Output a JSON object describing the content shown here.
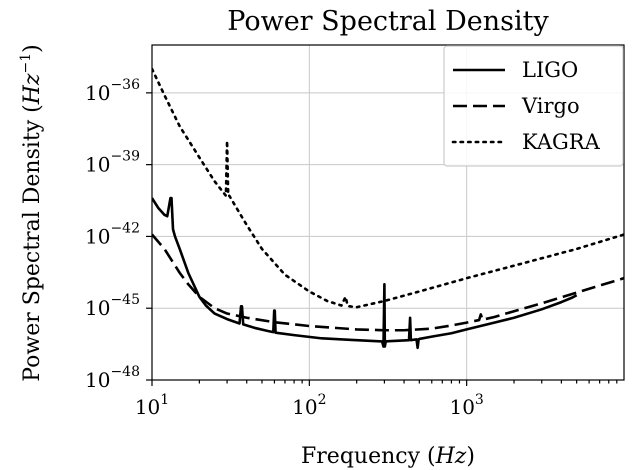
{
  "chart_data": {
    "type": "line",
    "title": "Power Spectral Density",
    "xlabel": "Frequency",
    "xlabel_unit": "Hz",
    "ylabel": "Power Spectral Density",
    "ylabel_unit": "Hz",
    "ylabel_unit_exp": "−1",
    "xscale": "log",
    "yscale": "log",
    "xlim": [
      10,
      10000
    ],
    "ylim": [
      1e-48,
      1e-34
    ],
    "grid": true,
    "legend_position": "top-right",
    "x_ticks": [
      {
        "value": 10,
        "base": "10",
        "exp": "1"
      },
      {
        "value": 100,
        "base": "10",
        "exp": "2"
      },
      {
        "value": 1000,
        "base": "10",
        "exp": "3"
      }
    ],
    "y_ticks": [
      {
        "value": 1e-48,
        "base": "10",
        "exp": "−48"
      },
      {
        "value": 1e-45,
        "base": "10",
        "exp": "−45"
      },
      {
        "value": 1e-42,
        "base": "10",
        "exp": "−42"
      },
      {
        "value": 1e-39,
        "base": "10",
        "exp": "−39"
      },
      {
        "value": 1e-36,
        "base": "10",
        "exp": "−36"
      }
    ],
    "series": [
      {
        "name": "LIGO",
        "style": "solid",
        "x": [
          10,
          11,
          12,
          12.5,
          13.1,
          13.3,
          13.6,
          14,
          15,
          17,
          20,
          22,
          25,
          30,
          36,
          36.8,
          37.3,
          38,
          45,
          55,
          59,
          59.8,
          60.3,
          61,
          80,
          120,
          180,
          250,
          290,
          296,
          300,
          302,
          306,
          320,
          400,
          430,
          437,
          442,
          448,
          470,
          480,
          488,
          495,
          500,
          600,
          800,
          1000,
          1500,
          2000,
          3000,
          4000,
          4700,
          5000
        ],
        "y": [
          4e-41,
          1.5e-41,
          8e-42,
          7e-42,
          4e-41,
          4e-41,
          2e-42,
          1e-42,
          3e-43,
          3e-44,
          3e-45,
          1.3e-45,
          6e-46,
          3.5e-46,
          2.3e-46,
          1.2e-45,
          1.2e-45,
          2.1e-46,
          1.5e-46,
          1.1e-46,
          1e-46,
          8e-46,
          8e-46,
          9.5e-47,
          7.5e-47,
          5.5e-47,
          4.8e-47,
          4.3e-47,
          4.1e-47,
          2.5e-47,
          1e-44,
          2.5e-47,
          4.1e-47,
          4.2e-47,
          4.5e-47,
          4.6e-47,
          4e-46,
          4.6e-47,
          4.7e-47,
          4.9e-47,
          5e-47,
          2.2e-47,
          5e-47,
          5.2e-47,
          6.5e-47,
          9e-47,
          1.3e-46,
          2.5e-46,
          4e-46,
          9e-46,
          1.8e-45,
          2.8e-45,
          3.5e-45
        ]
      },
      {
        "name": "Virgo",
        "style": "dashed",
        "x": [
          10,
          12,
          15,
          17,
          20,
          25,
          30,
          40,
          60,
          100,
          200,
          300,
          400,
          600,
          800,
          1000,
          1200,
          1230,
          1260,
          1500,
          2000,
          3000,
          5000,
          10000
        ],
        "y": [
          1.2e-42,
          3e-43,
          3e-44,
          1e-44,
          3e-45,
          1e-45,
          6e-46,
          4e-46,
          2.6e-46,
          1.8e-46,
          1.3e-46,
          1.2e-46,
          1.2e-46,
          1.4e-46,
          1.9e-46,
          2.5e-46,
          3.2e-46,
          5.5e-46,
          3.3e-46,
          4.3e-46,
          7.5e-46,
          1.6e-45,
          4.5e-45,
          1.8e-44
        ]
      },
      {
        "name": "KAGRA",
        "style": "dotted",
        "x": [
          10,
          12,
          15,
          20,
          25,
          29.5,
          30,
          30.5,
          31,
          35,
          40,
          50,
          70,
          100,
          130,
          160,
          170,
          175,
          180,
          200,
          300,
          500,
          1000,
          2000,
          5000,
          10000
        ],
        "y": [
          1e-35,
          8e-37,
          4e-38,
          2e-39,
          2e-40,
          5e-41,
          1e-38,
          5e-41,
          5e-41,
          1.3e-41,
          3e-42,
          3e-43,
          2.5e-44,
          5e-45,
          2e-45,
          1.3e-45,
          3e-45,
          1.3e-45,
          1.2e-45,
          1.1e-45,
          2e-45,
          5e-45,
          1.8e-44,
          6e-44,
          3e-43,
          1.2e-42
        ]
      }
    ]
  }
}
